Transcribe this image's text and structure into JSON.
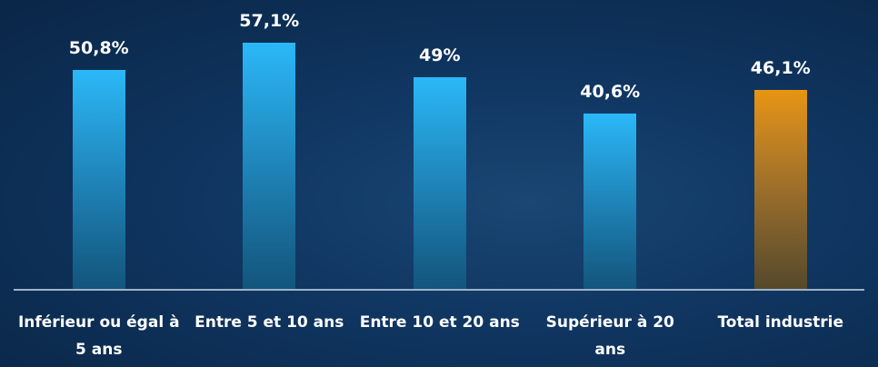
{
  "chart_data": {
    "type": "bar",
    "categories": [
      "Inférieur ou égal à 5 ans",
      "Entre 5 et 10 ans",
      "Entre 10 et 20 ans",
      "Supérieur à 20 ans",
      "Total industrie"
    ],
    "values": [
      50.8,
      57.1,
      49,
      40.6,
      46.1
    ],
    "value_labels": [
      "50,8%",
      "57,1%",
      "49%",
      "40,6%",
      "46,1%"
    ],
    "colors": [
      "#2bb8f8",
      "#2bb8f8",
      "#2bb8f8",
      "#2bb8f8",
      "#e8950f"
    ],
    "ylim": [
      0,
      67
    ]
  }
}
